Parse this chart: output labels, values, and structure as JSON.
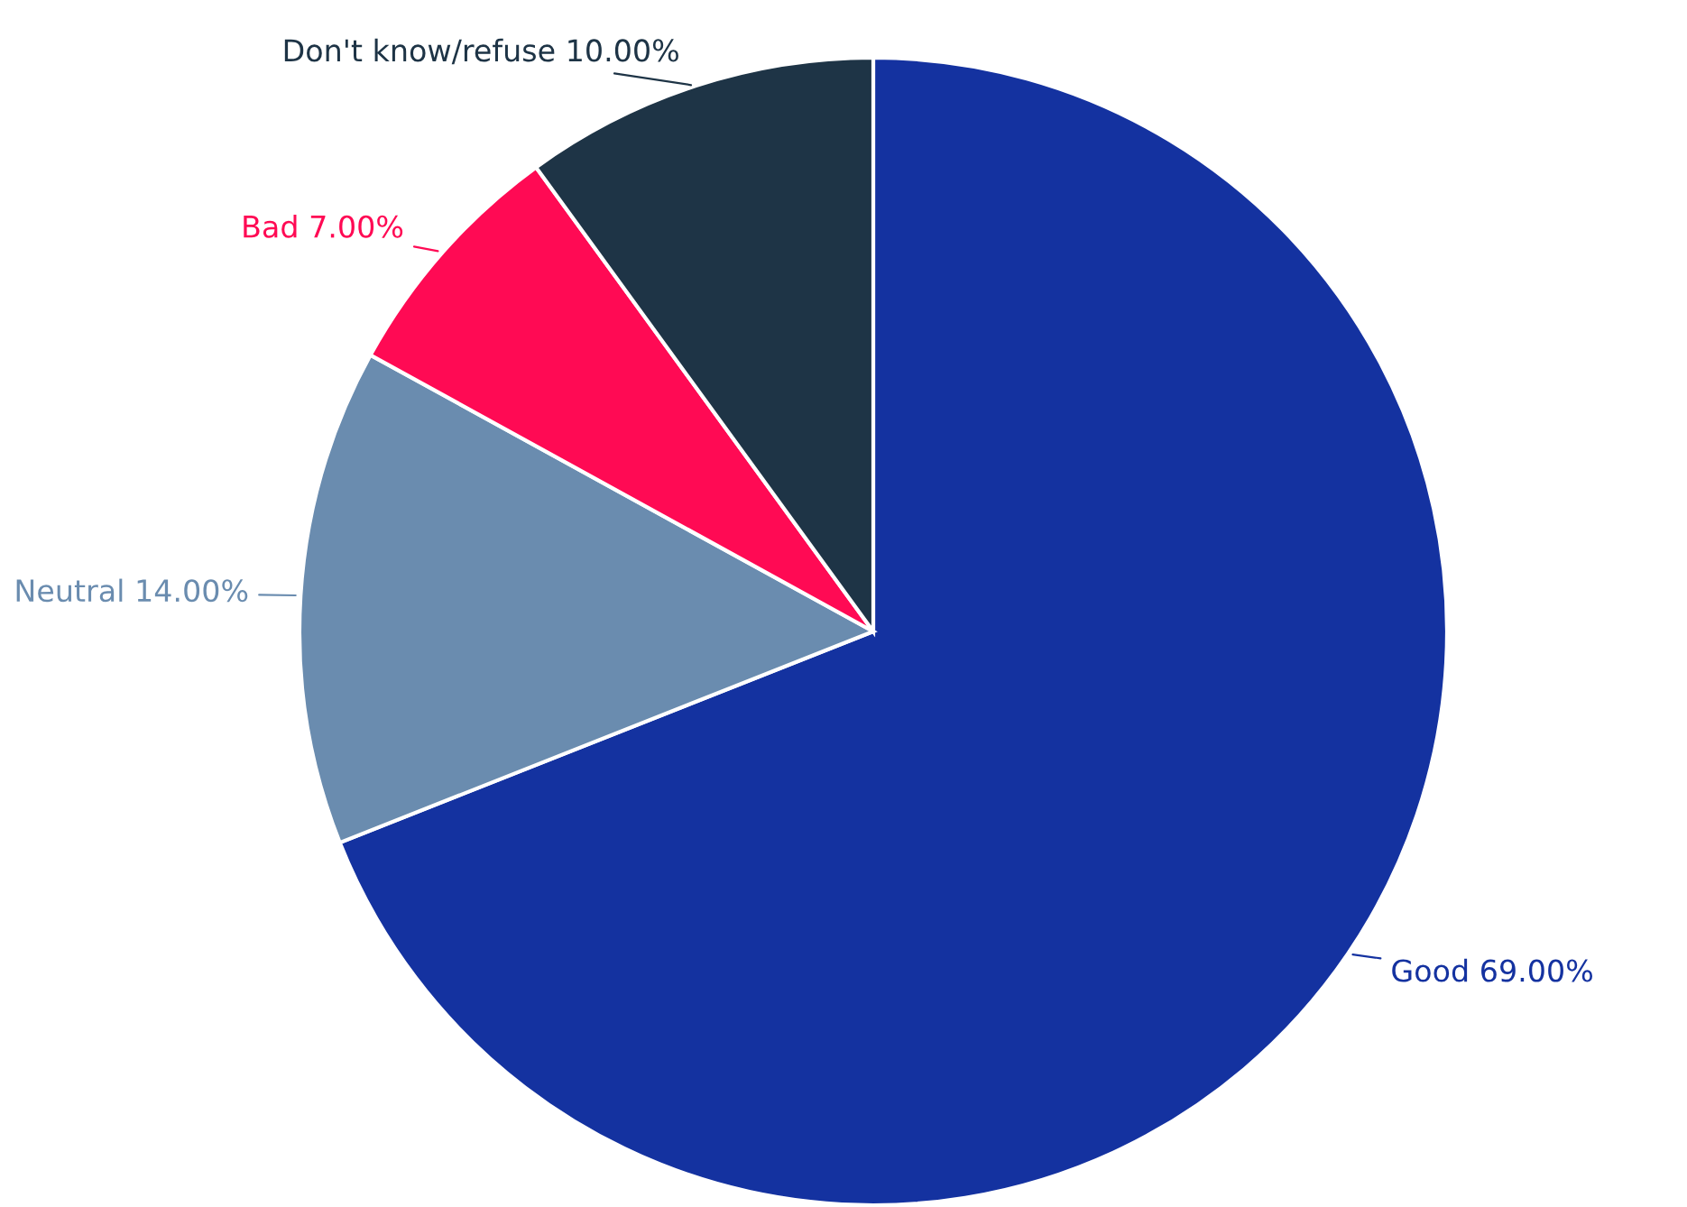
{
  "chart_data": {
    "type": "pie",
    "categories": [
      "Good",
      "Neutral",
      "Bad",
      "Don't know/refuse"
    ],
    "values": [
      69,
      14,
      7,
      10
    ],
    "value_labels": [
      "69.00%",
      "14.00%",
      "7.00%",
      "10.00%"
    ],
    "colors": [
      "#1432a0",
      "#6a8caf",
      "#ff0a54",
      "#1e3446"
    ],
    "legend": false
  }
}
